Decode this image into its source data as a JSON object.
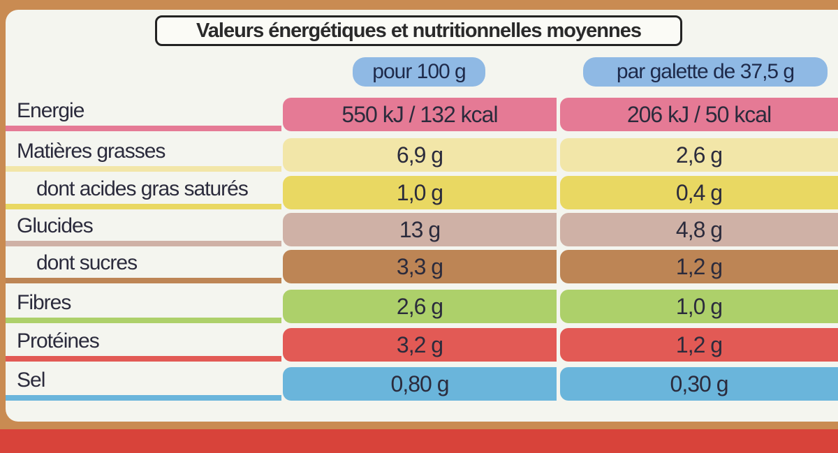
{
  "title": "Valeurs énergétiques et nutritionnelles moyennes",
  "columns": [
    "pour 100 g",
    "par galette de 37,5 g"
  ],
  "rows": [
    {
      "label": "Energie",
      "values": [
        "550 kJ / 132 kcal",
        "206 kJ / 50 kcal"
      ]
    },
    {
      "label": "Matières grasses",
      "values": [
        "6,9 g",
        "2,6 g"
      ]
    },
    {
      "label": "dont acides gras saturés",
      "values": [
        "1,0 g",
        "0,4 g"
      ]
    },
    {
      "label": "Glucides",
      "values": [
        "13 g",
        "4,8 g"
      ]
    },
    {
      "label": "dont sucres",
      "values": [
        "3,3 g",
        "1,2 g"
      ]
    },
    {
      "label": "Fibres",
      "values": [
        "2,6 g",
        "1,0 g"
      ]
    },
    {
      "label": "Protéines",
      "values": [
        "3,2 g",
        "1,2 g"
      ]
    },
    {
      "label": "Sel",
      "values": [
        "0,80 g",
        "0,30 g"
      ]
    }
  ]
}
